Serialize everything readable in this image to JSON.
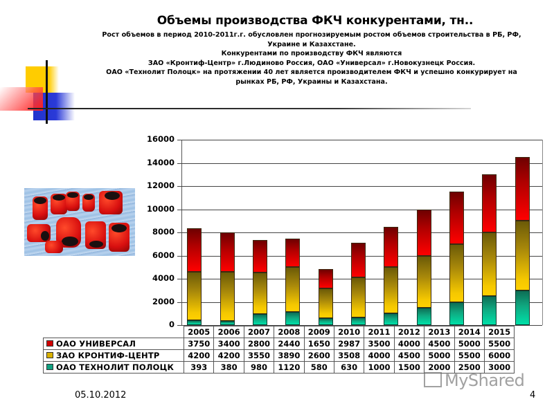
{
  "slide": {
    "title": "Объемы производства ФКЧ конкурентами, тн..",
    "subtitle_lines": [
      "Рост объемов в период 2010-2011г.г. обусловлен прогнозируемым ростом объемов строительства в РБ, РФ,",
      "Украине и Казахстане.",
      "Конкурентами по производству ФКЧ являются",
      "ЗАО «Кронтиф-Центр» г.Людиново Россия, ОАО «Универсал» г.Новокузнецк Россия.",
      "ОАО «Технолит Полоцк» на протяжении 40 лет является производителем ФКЧ и успешно конкурирует на",
      "рынках РБ, РФ, Украины и Казахстана."
    ],
    "footer_date": "05.10.2012",
    "page_number": "4",
    "watermark": "MyShared"
  },
  "colors": {
    "universal": "#e00000",
    "krontif": "#e0b800",
    "tekhnolit": "#10b890"
  },
  "chart_data": {
    "type": "bar",
    "stacked": true,
    "title": "Объемы производства ФКЧ конкурентами, тн..",
    "xlabel": "",
    "ylabel": "",
    "ylim": [
      0,
      16000
    ],
    "yticks": [
      "16000",
      "14000",
      "12000",
      "10000",
      "8000",
      "6000",
      "4000",
      "2000",
      "0"
    ],
    "grid": true,
    "legend_position": "data-table-left",
    "categories": [
      "2005",
      "2006",
      "2007",
      "2008",
      "2009",
      "2010",
      "2011",
      "2012",
      "2013",
      "2014",
      "2015"
    ],
    "series": [
      {
        "name": "ОАО ТЕХНОЛИТ ПОЛОЦК",
        "color": "#10b890",
        "values": [
          393,
          380,
          980,
          1120,
          580,
          630,
          1000,
          1500,
          2000,
          2500,
          3000
        ]
      },
      {
        "name": "ЗАО КРОНТИФ-ЦЕНТР",
        "color": "#e0b800",
        "values": [
          4200,
          4200,
          3550,
          3890,
          2600,
          3508,
          4000,
          4500,
          5000,
          5500,
          6000
        ]
      },
      {
        "name": "ОАО УНИВЕРСАЛ",
        "color": "#e00000",
        "values": [
          3750,
          3400,
          2800,
          2440,
          1650,
          2987,
          3500,
          4000,
          4500,
          5000,
          5500
        ]
      }
    ],
    "table_rows": [
      {
        "label": "ОАО УНИВЕРСАЛ",
        "values": [
          "3750",
          "3400",
          "2800",
          "2440",
          "1650",
          "2987",
          "3500",
          "4000",
          "4500",
          "5000",
          "5500"
        ]
      },
      {
        "label": "ЗАО КРОНТИФ-ЦЕНТР",
        "values": [
          "4200",
          "4200",
          "3550",
          "3890",
          "2600",
          "3508",
          "4000",
          "4500",
          "5000",
          "5500",
          "6000"
        ]
      },
      {
        "label": "ОАО ТЕХНОЛИТ ПОЛОЦК",
        "values": [
          "393",
          "380",
          "980",
          "1120",
          "580",
          "630",
          "1000",
          "1500",
          "2000",
          "2500",
          "3000"
        ]
      }
    ]
  }
}
